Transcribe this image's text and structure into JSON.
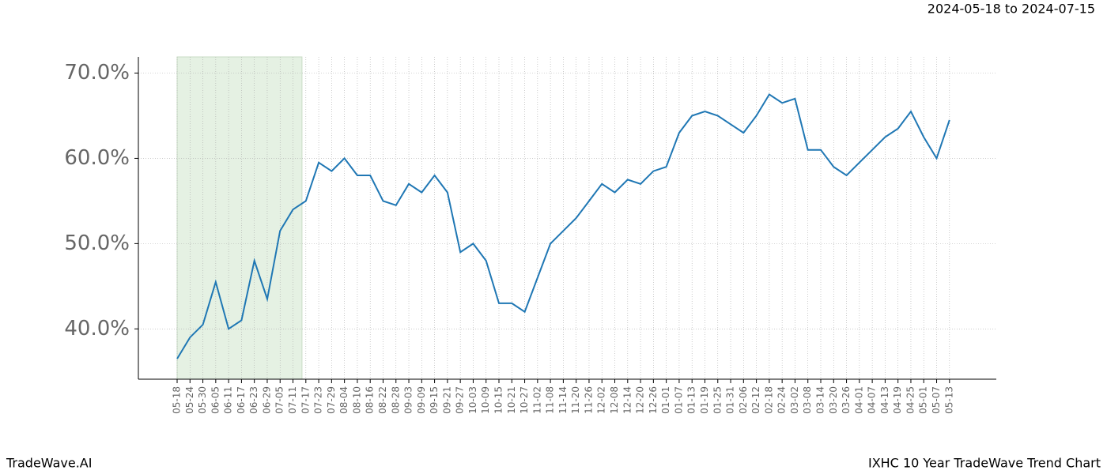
{
  "chart_data": {
    "type": "line",
    "title": "IXHC 10 Year TradeWave Trend Chart",
    "subtitle": "2024-05-18 to 2024-07-15",
    "brand": "TradeWave.AI",
    "categories": [
      "05-18",
      "05-24",
      "05-30",
      "06-05",
      "06-11",
      "06-17",
      "06-23",
      "06-29",
      "07-05",
      "07-11",
      "07-17",
      "07-23",
      "07-29",
      "08-04",
      "08-10",
      "08-16",
      "08-22",
      "08-28",
      "09-03",
      "09-09",
      "09-15",
      "09-21",
      "09-27",
      "10-03",
      "10-09",
      "10-15",
      "10-21",
      "10-27",
      "11-02",
      "11-08",
      "11-14",
      "11-20",
      "11-26",
      "12-02",
      "12-08",
      "12-14",
      "12-20",
      "12-26",
      "01-01",
      "01-07",
      "01-13",
      "01-19",
      "01-25",
      "01-31",
      "02-06",
      "02-12",
      "02-18",
      "02-24",
      "03-02",
      "03-08",
      "03-14",
      "03-20",
      "03-26",
      "04-01",
      "04-07",
      "04-13",
      "04-19",
      "04-25",
      "05-01",
      "05-07",
      "05-13"
    ],
    "values": [
      36.5,
      39,
      40.5,
      45.5,
      40,
      41,
      48,
      43.5,
      51.5,
      54,
      55,
      59.5,
      58.5,
      60,
      58,
      58,
      55,
      54.5,
      57,
      56,
      58,
      56,
      49,
      50,
      48,
      43,
      43,
      42,
      46,
      50,
      51.5,
      53,
      55,
      57,
      56,
      57.5,
      57,
      58.5,
      59,
      63,
      65,
      65.5,
      65,
      64,
      63,
      65,
      67.5,
      66.5,
      67,
      61,
      61,
      59,
      58,
      59.5,
      61,
      62.5,
      63.5,
      65.5,
      62.5,
      60,
      64.5
    ],
    "color": "#1f77b4",
    "ylim": [
      34.1,
      71.9
    ],
    "yticks": [
      {
        "value": 40,
        "label": "40.0%"
      },
      {
        "value": 50,
        "label": "50.0%"
      },
      {
        "value": 60,
        "label": "60.0%"
      },
      {
        "value": 70,
        "label": "70.0%"
      }
    ],
    "grid": true
  }
}
